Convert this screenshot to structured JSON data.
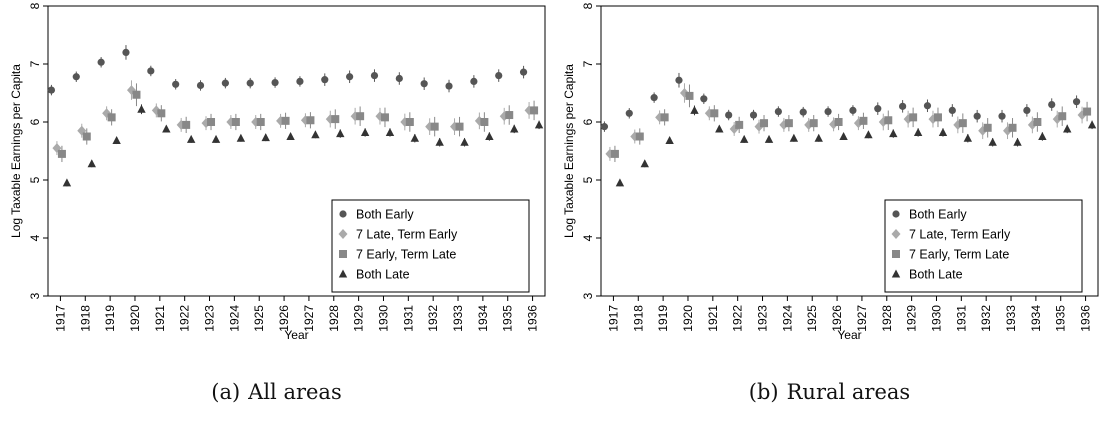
{
  "chart_data": [
    {
      "type": "scatter",
      "panel": "a",
      "caption_label": "(a)",
      "caption_text": "All areas",
      "xlabel": "Year",
      "ylabel": "Log Taxable Earnings per Capita",
      "ylim": [
        3,
        8
      ],
      "yticks": [
        "3",
        "4",
        "5",
        "6",
        "7",
        "8"
      ],
      "categories": [
        "1917",
        "1918",
        "1919",
        "1920",
        "1921",
        "1922",
        "1923",
        "1924",
        "1925",
        "1926",
        "1927",
        "1928",
        "1929",
        "1930",
        "1931",
        "1932",
        "1933",
        "1934",
        "1935",
        "1936"
      ],
      "grid": false,
      "legend_position": "bottom-right",
      "error_bars": true,
      "series": [
        {
          "name": "Both Early",
          "marker": "circle",
          "color": "#555555",
          "values": [
            6.55,
            6.78,
            7.03,
            7.2,
            6.88,
            6.65,
            6.63,
            6.67,
            6.67,
            6.68,
            6.7,
            6.73,
            6.78,
            6.8,
            6.75,
            6.66,
            6.62,
            6.7,
            6.8,
            6.86
          ]
        },
        {
          "name": "7 Late, Term Early",
          "marker": "diamond",
          "color": "#aaaaaa",
          "values": [
            5.55,
            5.85,
            6.15,
            6.55,
            6.2,
            5.95,
            5.98,
            6.0,
            6.0,
            6.02,
            6.03,
            6.05,
            6.1,
            6.1,
            6.0,
            5.92,
            5.92,
            6.02,
            6.1,
            6.2
          ]
        },
        {
          "name": "7 Early, Term Late",
          "marker": "square",
          "color": "#888888",
          "values": [
            5.45,
            5.75,
            6.08,
            6.47,
            6.15,
            5.95,
            6.0,
            6.0,
            6.0,
            6.02,
            6.03,
            6.05,
            6.1,
            6.08,
            6.0,
            5.92,
            5.92,
            6.0,
            6.12,
            6.2
          ]
        },
        {
          "name": "Both Late",
          "marker": "triangle",
          "color": "#333333",
          "values": [
            4.95,
            5.28,
            5.68,
            6.22,
            5.88,
            5.7,
            5.7,
            5.72,
            5.73,
            5.75,
            5.78,
            5.8,
            5.82,
            5.82,
            5.72,
            5.65,
            5.65,
            5.75,
            5.88,
            5.95
          ]
        }
      ]
    },
    {
      "type": "scatter",
      "panel": "b",
      "caption_label": "(b)",
      "caption_text": "Rural areas",
      "xlabel": "Year",
      "ylabel": "Log Taxable Earnings per Capita",
      "ylim": [
        3,
        8
      ],
      "yticks": [
        "3",
        "4",
        "5",
        "6",
        "7",
        "8"
      ],
      "categories": [
        "1917",
        "1918",
        "1919",
        "1920",
        "1921",
        "1922",
        "1923",
        "1924",
        "1925",
        "1926",
        "1927",
        "1928",
        "1929",
        "1930",
        "1931",
        "1932",
        "1933",
        "1934",
        "1935",
        "1936"
      ],
      "grid": false,
      "legend_position": "bottom-right",
      "error_bars": true,
      "series": [
        {
          "name": "Both Early",
          "marker": "circle",
          "color": "#555555",
          "values": [
            5.92,
            6.15,
            6.42,
            6.72,
            6.4,
            6.12,
            6.12,
            6.18,
            6.17,
            6.18,
            6.2,
            6.23,
            6.27,
            6.28,
            6.2,
            6.1,
            6.1,
            6.2,
            6.3,
            6.35
          ]
        },
        {
          "name": "7 Late, Term Early",
          "marker": "diamond",
          "color": "#aaaaaa",
          "values": [
            5.45,
            5.75,
            6.08,
            6.5,
            6.15,
            5.88,
            5.92,
            5.95,
            5.95,
            5.96,
            5.98,
            6.0,
            6.05,
            6.05,
            5.95,
            5.85,
            5.85,
            5.95,
            6.05,
            6.12
          ]
        },
        {
          "name": "7 Early, Term Late",
          "marker": "square",
          "color": "#888888",
          "values": [
            5.45,
            5.75,
            6.08,
            6.45,
            6.15,
            5.95,
            5.98,
            5.98,
            5.98,
            6.0,
            6.02,
            6.03,
            6.08,
            6.08,
            5.98,
            5.9,
            5.9,
            6.0,
            6.1,
            6.18
          ]
        },
        {
          "name": "Both Late",
          "marker": "triangle",
          "color": "#333333",
          "values": [
            4.95,
            5.28,
            5.68,
            6.2,
            5.88,
            5.7,
            5.7,
            5.72,
            5.72,
            5.75,
            5.78,
            5.8,
            5.82,
            5.82,
            5.72,
            5.65,
            5.65,
            5.75,
            5.88,
            5.95
          ]
        }
      ]
    }
  ]
}
